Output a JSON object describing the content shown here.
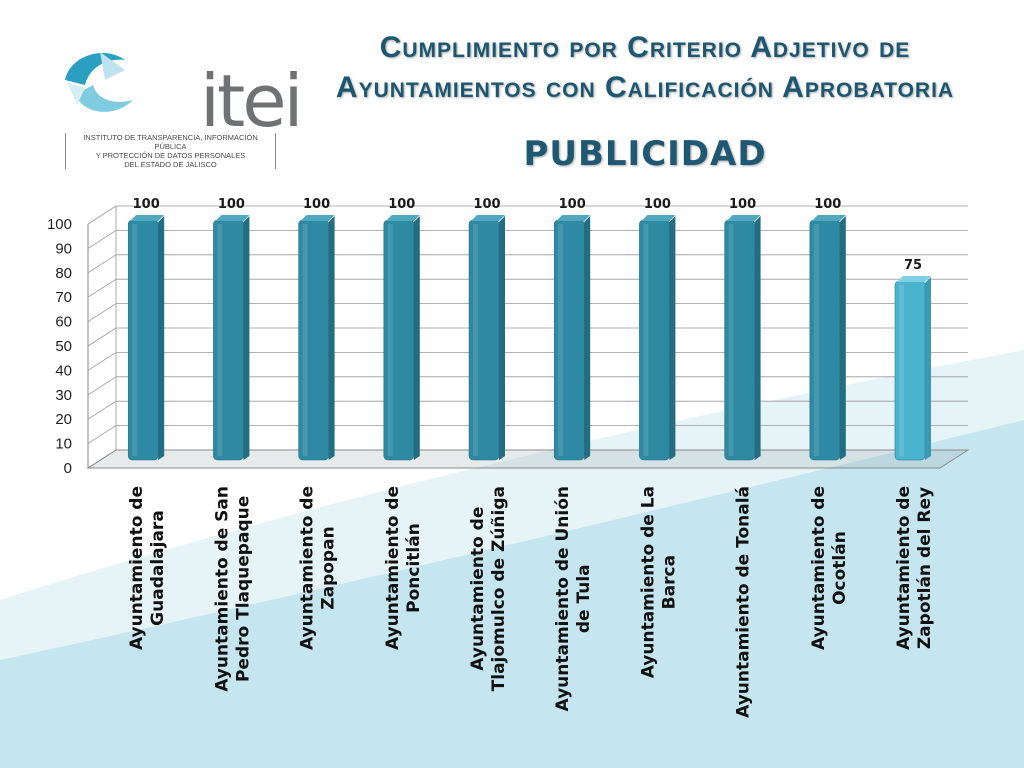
{
  "header": {
    "title_line1": "Cumplimiento por Criterio Adjetivo de",
    "title_line2": "Ayuntamientos con Calificación Aprobatoria",
    "subtitle": "PUBLICIDAD"
  },
  "logo": {
    "wordmark": "itei",
    "sub_line1": "INSTITUTO DE TRANSPARENCIA, INFORMACIÓN PÚBLICA",
    "sub_line2": "Y PROTECCIÓN DE DATOS PERSONALES",
    "sub_line3": "DEL ESTADO DE JALISCO"
  },
  "colors": {
    "bar_primary": "#2e8aa3",
    "bar_highlight": "#4ab4cf",
    "title": "#1d5670",
    "background_wave": "#c6e6ef"
  },
  "chart_data": {
    "type": "bar",
    "ylim": [
      0,
      100
    ],
    "yticks": [
      0,
      10,
      20,
      30,
      40,
      50,
      60,
      70,
      80,
      90,
      100
    ],
    "grid": true,
    "categories": [
      [
        "Ayuntamiento de",
        "Guadalajara"
      ],
      [
        "Ayuntamiento de San",
        "Pedro Tlaquepaque"
      ],
      [
        "Ayuntamiento de",
        "Zapopan"
      ],
      [
        "Ayuntamiento de",
        "Poncitlán"
      ],
      [
        "Ayuntamiento de",
        "Tlajomulco de Zúñiga"
      ],
      [
        "Ayuntamiento de Unión",
        "de Tula"
      ],
      [
        "Ayuntamiento de La",
        "Barca"
      ],
      [
        "Ayuntamiento de Tonalá"
      ],
      [
        "Ayuntamiento de",
        "Ocotlán"
      ],
      [
        "Ayuntamiento de",
        "Zapotlán del Rey"
      ]
    ],
    "values": [
      100,
      100,
      100,
      100,
      100,
      100,
      100,
      100,
      100,
      75
    ],
    "data_labels": [
      "100",
      "100",
      "100",
      "100",
      "100",
      "100",
      "100",
      "100",
      "100",
      "75"
    ]
  }
}
